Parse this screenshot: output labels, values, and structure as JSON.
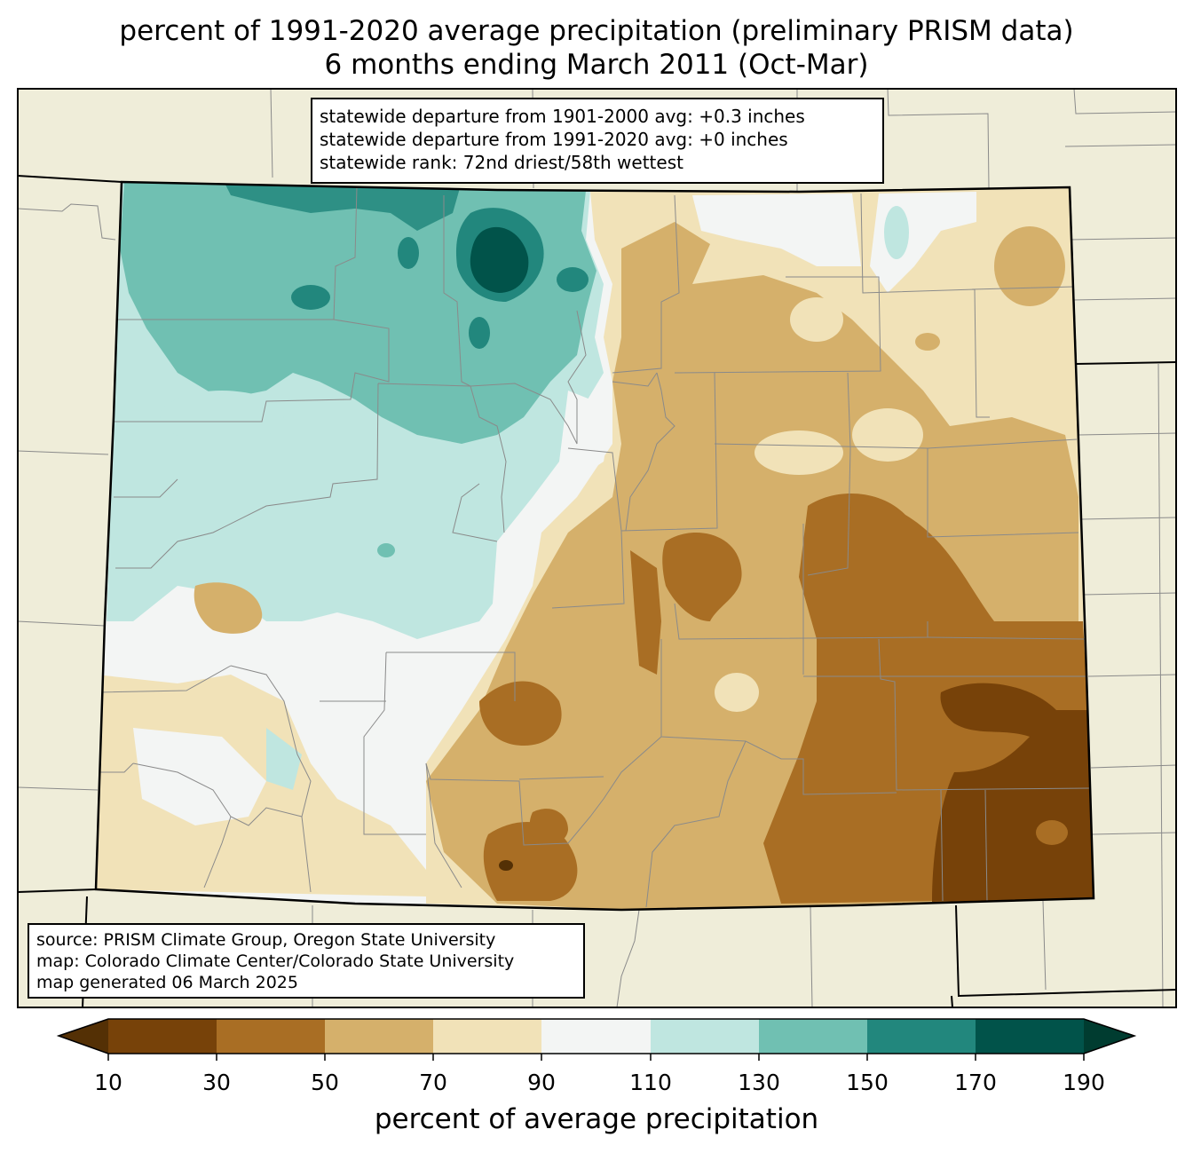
{
  "title_line1": "percent of 1991-2020 average precipitation (preliminary PRISM data)",
  "title_line2": "6 months ending March 2011 (Oct-Mar)",
  "stats": {
    "line1": "statewide departure from 1901-2000 avg: +0.3 inches",
    "line2": "statewide departure from 1991-2020 avg: +0 inches",
    "line3": "statewide rank: 72nd driest/58th wettest"
  },
  "source": {
    "line1": "source: PRISM Climate Group, Oregon State University",
    "line2": "map: Colorado Climate Center/Colorado State University",
    "line3": "map generated 06 March 2025"
  },
  "colorbar": {
    "label": "percent of average precipitation",
    "ticks": [
      "10",
      "30",
      "50",
      "70",
      "90",
      "110",
      "130",
      "150",
      "170",
      "190"
    ],
    "colors": [
      "#543005",
      "#774209",
      "#a96e24",
      "#d5b06b",
      "#f1e2b8",
      "#f3f5f4",
      "#bfe6e0",
      "#70c0b2",
      "#22877d",
      "#01534a",
      "#003c30"
    ]
  },
  "map": {
    "background_color": "#efedd9",
    "region": "Colorado",
    "pattern": "wetter than average (110-190%) in the northwest mountains; drier than average (10-90%) across the east and south"
  }
}
